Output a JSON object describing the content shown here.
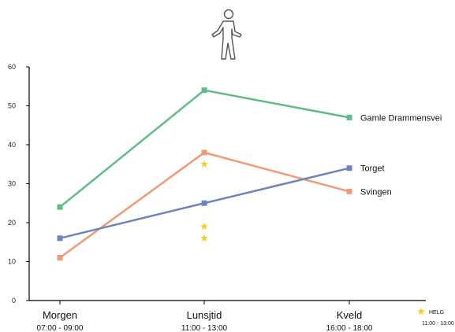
{
  "icon": "walking-person-icon",
  "chart_data": {
    "type": "line",
    "categories": [
      "Morgen",
      "Lunsjtid",
      "Kveld"
    ],
    "category_times": [
      "07:00 - 09:00",
      "11:00 - 13:00",
      "16:00 - 18:00"
    ],
    "y_ticks": [
      "0",
      "10",
      "20",
      "30",
      "40",
      "50",
      "60"
    ],
    "ylim": [
      0,
      60
    ],
    "grid": false,
    "series": [
      {
        "name": "Gamle Drammensvei",
        "values": [
          24,
          54,
          47
        ],
        "color": "#5cbd86"
      },
      {
        "name": "Svingen",
        "values": [
          11,
          38,
          28
        ],
        "color": "#f19a74"
      },
      {
        "name": "Torget",
        "values": [
          16,
          25,
          34
        ],
        "color": "#6e84bd"
      }
    ],
    "helg_points": [
      {
        "category": "Lunsjtid",
        "value": 35
      },
      {
        "category": "Lunsjtid",
        "value": 19
      },
      {
        "category": "Lunsjtid",
        "value": 16
      }
    ],
    "legend": {
      "label": "HELG",
      "time": "11:00 - 13:00",
      "star_color": "#f5d21d"
    }
  }
}
